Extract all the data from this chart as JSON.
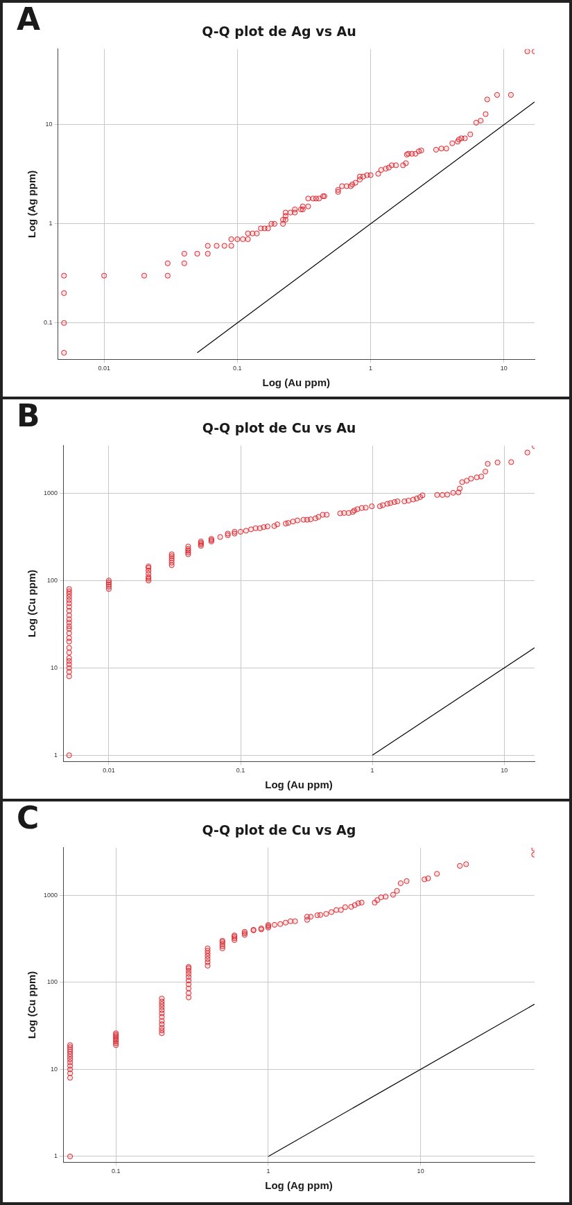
{
  "chart_data": [
    {
      "type": "scatter",
      "title": "Q-Q plot de Ag vs Au",
      "xlabel": "Log (Au ppm)",
      "ylabel": "Log (Ag ppm)",
      "annotations": [
        "A"
      ],
      "log": "xy",
      "grid": true,
      "marker": "circle",
      "xlim": [
        0.0045,
        17
      ],
      "ylim": [
        0.043,
        58
      ],
      "xticks": [
        0.01,
        0.1,
        1,
        10
      ],
      "yticks": [
        0.1,
        1,
        10
      ],
      "series": [
        {
          "type": "scatter",
          "color": "#e0262e",
          "x": [
            0.005,
            0.005,
            0.005,
            0.005,
            0.01,
            0.02,
            0.03,
            0.03,
            0.04,
            0.04,
            0.05,
            0.06,
            0.06,
            0.07,
            0.08,
            0.09,
            0.09,
            0.1,
            0.11,
            0.12,
            0.12,
            0.13,
            0.14,
            0.15,
            0.16,
            0.17,
            0.18,
            0.19,
            0.22,
            0.22,
            0.23,
            0.23,
            0.23,
            0.25,
            0.27,
            0.27,
            0.3,
            0.31,
            0.31,
            0.34,
            0.34,
            0.37,
            0.39,
            0.41,
            0.44,
            0.45,
            0.57,
            0.57,
            0.61,
            0.66,
            0.71,
            0.73,
            0.77,
            0.83,
            0.83,
            0.88,
            0.94,
            1.0,
            1.14,
            1.2,
            1.3,
            1.37,
            1.44,
            1.55,
            1.75,
            1.84,
            1.87,
            1.92,
            2.04,
            2.17,
            2.3,
            2.4,
            3.1,
            3.4,
            3.7,
            4.1,
            4.5,
            4.6,
            4.8,
            5.1,
            5.6,
            6.2,
            6.7,
            7.3,
            7.5,
            8.9,
            11.3,
            15,
            17
          ],
          "values": [
            0.05,
            0.1,
            0.2,
            0.3,
            0.3,
            0.3,
            0.3,
            0.4,
            0.4,
            0.5,
            0.5,
            0.5,
            0.6,
            0.6,
            0.6,
            0.6,
            0.7,
            0.7,
            0.7,
            0.7,
            0.8,
            0.8,
            0.8,
            0.9,
            0.9,
            0.9,
            1.0,
            1.0,
            1.0,
            1.1,
            1.1,
            1.2,
            1.3,
            1.3,
            1.3,
            1.4,
            1.4,
            1.4,
            1.5,
            1.5,
            1.8,
            1.8,
            1.8,
            1.8,
            1.9,
            1.9,
            2.1,
            2.2,
            2.4,
            2.4,
            2.4,
            2.5,
            2.6,
            2.8,
            3.0,
            3.0,
            3.1,
            3.1,
            3.2,
            3.5,
            3.6,
            3.7,
            3.9,
            3.9,
            3.9,
            4.1,
            5.0,
            5.1,
            5.1,
            5.1,
            5.4,
            5.5,
            5.6,
            5.75,
            5.75,
            6.5,
            6.75,
            7.1,
            7.3,
            7.3,
            8.0,
            10.5,
            11,
            12.8,
            18,
            20,
            20,
            55,
            55
          ]
        },
        {
          "type": "line",
          "color": "#000000",
          "marker": "none",
          "x": [
            0.05,
            17
          ],
          "values": [
            0.05,
            17
          ]
        }
      ]
    },
    {
      "type": "scatter",
      "title": "Q-Q plot de Cu vs Au",
      "xlabel": "Log (Au ppm)",
      "ylabel": "Log (Cu ppm)",
      "annotations": [
        "B"
      ],
      "log": "xy",
      "grid": true,
      "marker": "circle",
      "xlim": [
        0.0045,
        17
      ],
      "ylim": [
        0.85,
        3500
      ],
      "xticks": [
        0.01,
        0.1,
        1,
        10
      ],
      "yticks": [
        1,
        10,
        100,
        1000
      ],
      "series": [
        {
          "type": "scatter",
          "color": "#e0262e",
          "x": [
            0.005,
            0.005,
            0.005,
            0.005,
            0.005,
            0.005,
            0.005,
            0.005,
            0.005,
            0.005,
            0.005,
            0.005,
            0.005,
            0.005,
            0.005,
            0.005,
            0.005,
            0.005,
            0.005,
            0.005,
            0.005,
            0.005,
            0.005,
            0.005,
            0.005,
            0.01,
            0.01,
            0.01,
            0.01,
            0.01,
            0.02,
            0.02,
            0.02,
            0.02,
            0.02,
            0.02,
            0.02,
            0.03,
            0.03,
            0.03,
            0.03,
            0.03,
            0.03,
            0.04,
            0.04,
            0.04,
            0.04,
            0.04,
            0.05,
            0.05,
            0.05,
            0.05,
            0.06,
            0.06,
            0.06,
            0.07,
            0.08,
            0.08,
            0.09,
            0.09,
            0.1,
            0.11,
            0.12,
            0.13,
            0.14,
            0.15,
            0.16,
            0.18,
            0.19,
            0.22,
            0.23,
            0.25,
            0.27,
            0.3,
            0.32,
            0.34,
            0.37,
            0.39,
            0.42,
            0.45,
            0.57,
            0.61,
            0.66,
            0.71,
            0.73,
            0.77,
            0.83,
            0.89,
            0.99,
            1.14,
            1.2,
            1.3,
            1.37,
            1.47,
            1.55,
            1.75,
            1.88,
            2.04,
            2.17,
            2.3,
            2.4,
            3.1,
            3.4,
            3.7,
            4.1,
            4.5,
            4.6,
            4.8,
            5.2,
            5.6,
            6.2,
            6.7,
            7.2,
            7.5,
            8.9,
            11.3,
            15,
            17
          ],
          "values": [
            1,
            8,
            9,
            10,
            11,
            12,
            13,
            15,
            17,
            20,
            22,
            25,
            28,
            30,
            33,
            36,
            40,
            45,
            50,
            55,
            60,
            65,
            70,
            75,
            80,
            80,
            85,
            90,
            95,
            100,
            100,
            105,
            110,
            120,
            130,
            140,
            145,
            150,
            160,
            170,
            180,
            190,
            200,
            200,
            210,
            220,
            230,
            245,
            250,
            260,
            270,
            280,
            280,
            290,
            300,
            315,
            330,
            345,
            345,
            362,
            362,
            372,
            386,
            397,
            397,
            409,
            416,
            420,
            440,
            449,
            457,
            474,
            488,
            497,
            497,
            502,
            516,
            536,
            566,
            566,
            588,
            593,
            593,
            610,
            633,
            657,
            676,
            682,
            708,
            708,
            729,
            756,
            770,
            792,
            807,
            807,
            822,
            846,
            870,
            903,
            946,
            955,
            955,
            963,
            1010,
            1020,
            1130,
            1340,
            1390,
            1465,
            1520,
            1550,
            1770,
            2170,
            2250,
            2270,
            2920,
            3450
          ]
        },
        {
          "type": "line",
          "color": "#000000",
          "marker": "none",
          "x": [
            1,
            17
          ],
          "values": [
            1,
            17
          ]
        }
      ]
    },
    {
      "type": "scatter",
      "title": "Q-Q plot de Cu vs Ag",
      "xlabel": "Log (Ag ppm)",
      "ylabel": "Log (Cu ppm)",
      "annotations": [
        "C"
      ],
      "log": "xy",
      "grid": true,
      "marker": "circle",
      "xlim": [
        0.045,
        56
      ],
      "ylim": [
        0.86,
        3500
      ],
      "xticks": [
        0.1,
        1,
        10
      ],
      "yticks": [
        1,
        10,
        100,
        1000
      ],
      "series": [
        {
          "type": "scatter",
          "color": "#e0262e",
          "x": [
            0.05,
            0.05,
            0.05,
            0.05,
            0.05,
            0.05,
            0.05,
            0.05,
            0.05,
            0.05,
            0.05,
            0.05,
            0.05,
            0.1,
            0.1,
            0.1,
            0.1,
            0.1,
            0.1,
            0.1,
            0.1,
            0.2,
            0.2,
            0.2,
            0.2,
            0.2,
            0.2,
            0.2,
            0.2,
            0.2,
            0.2,
            0.2,
            0.2,
            0.3,
            0.3,
            0.3,
            0.3,
            0.3,
            0.3,
            0.3,
            0.3,
            0.3,
            0.3,
            0.4,
            0.4,
            0.4,
            0.4,
            0.4,
            0.4,
            0.4,
            0.5,
            0.5,
            0.5,
            0.5,
            0.5,
            0.6,
            0.6,
            0.6,
            0.6,
            0.7,
            0.7,
            0.7,
            0.8,
            0.8,
            0.9,
            0.9,
            1.0,
            1.0,
            1.0,
            1.1,
            1.2,
            1.3,
            1.4,
            1.5,
            1.8,
            1.8,
            1.9,
            2.1,
            2.2,
            2.4,
            2.6,
            2.8,
            3.0,
            3.2,
            3.5,
            3.7,
            3.9,
            4.1,
            5.0,
            5.2,
            5.5,
            5.9,
            6.6,
            7.0,
            7.4,
            8.1,
            10.6,
            11.2,
            12.8,
            18.1,
            19.9,
            55.7,
            55.7
          ],
          "values": [
            1,
            8,
            9,
            10,
            11,
            12,
            13,
            14,
            15,
            16,
            17,
            18,
            19,
            19,
            20,
            21,
            22,
            23,
            24,
            25,
            26,
            26,
            28,
            30,
            33,
            36,
            40,
            44,
            48,
            52,
            56,
            60,
            65,
            67,
            75,
            85,
            95,
            105,
            115,
            125,
            135,
            145,
            150,
            155,
            170,
            185,
            200,
            215,
            230,
            245,
            245,
            260,
            275,
            290,
            300,
            305,
            320,
            335,
            345,
            350,
            365,
            380,
            395,
            400,
            405,
            415,
            425,
            440,
            455,
            457,
            466,
            484,
            502,
            502,
            521,
            566,
            566,
            588,
            593,
            610,
            640,
            676,
            676,
            729,
            735,
            770,
            807,
            822,
            822,
            878,
            946,
            963,
            1010,
            1120,
            1370,
            1450,
            1520,
            1560,
            1760,
            2170,
            2270,
            2920,
            3420
          ]
        },
        {
          "type": "line",
          "color": "#000000",
          "marker": "none",
          "x": [
            1,
            56
          ],
          "values": [
            1,
            56
          ]
        }
      ]
    }
  ]
}
